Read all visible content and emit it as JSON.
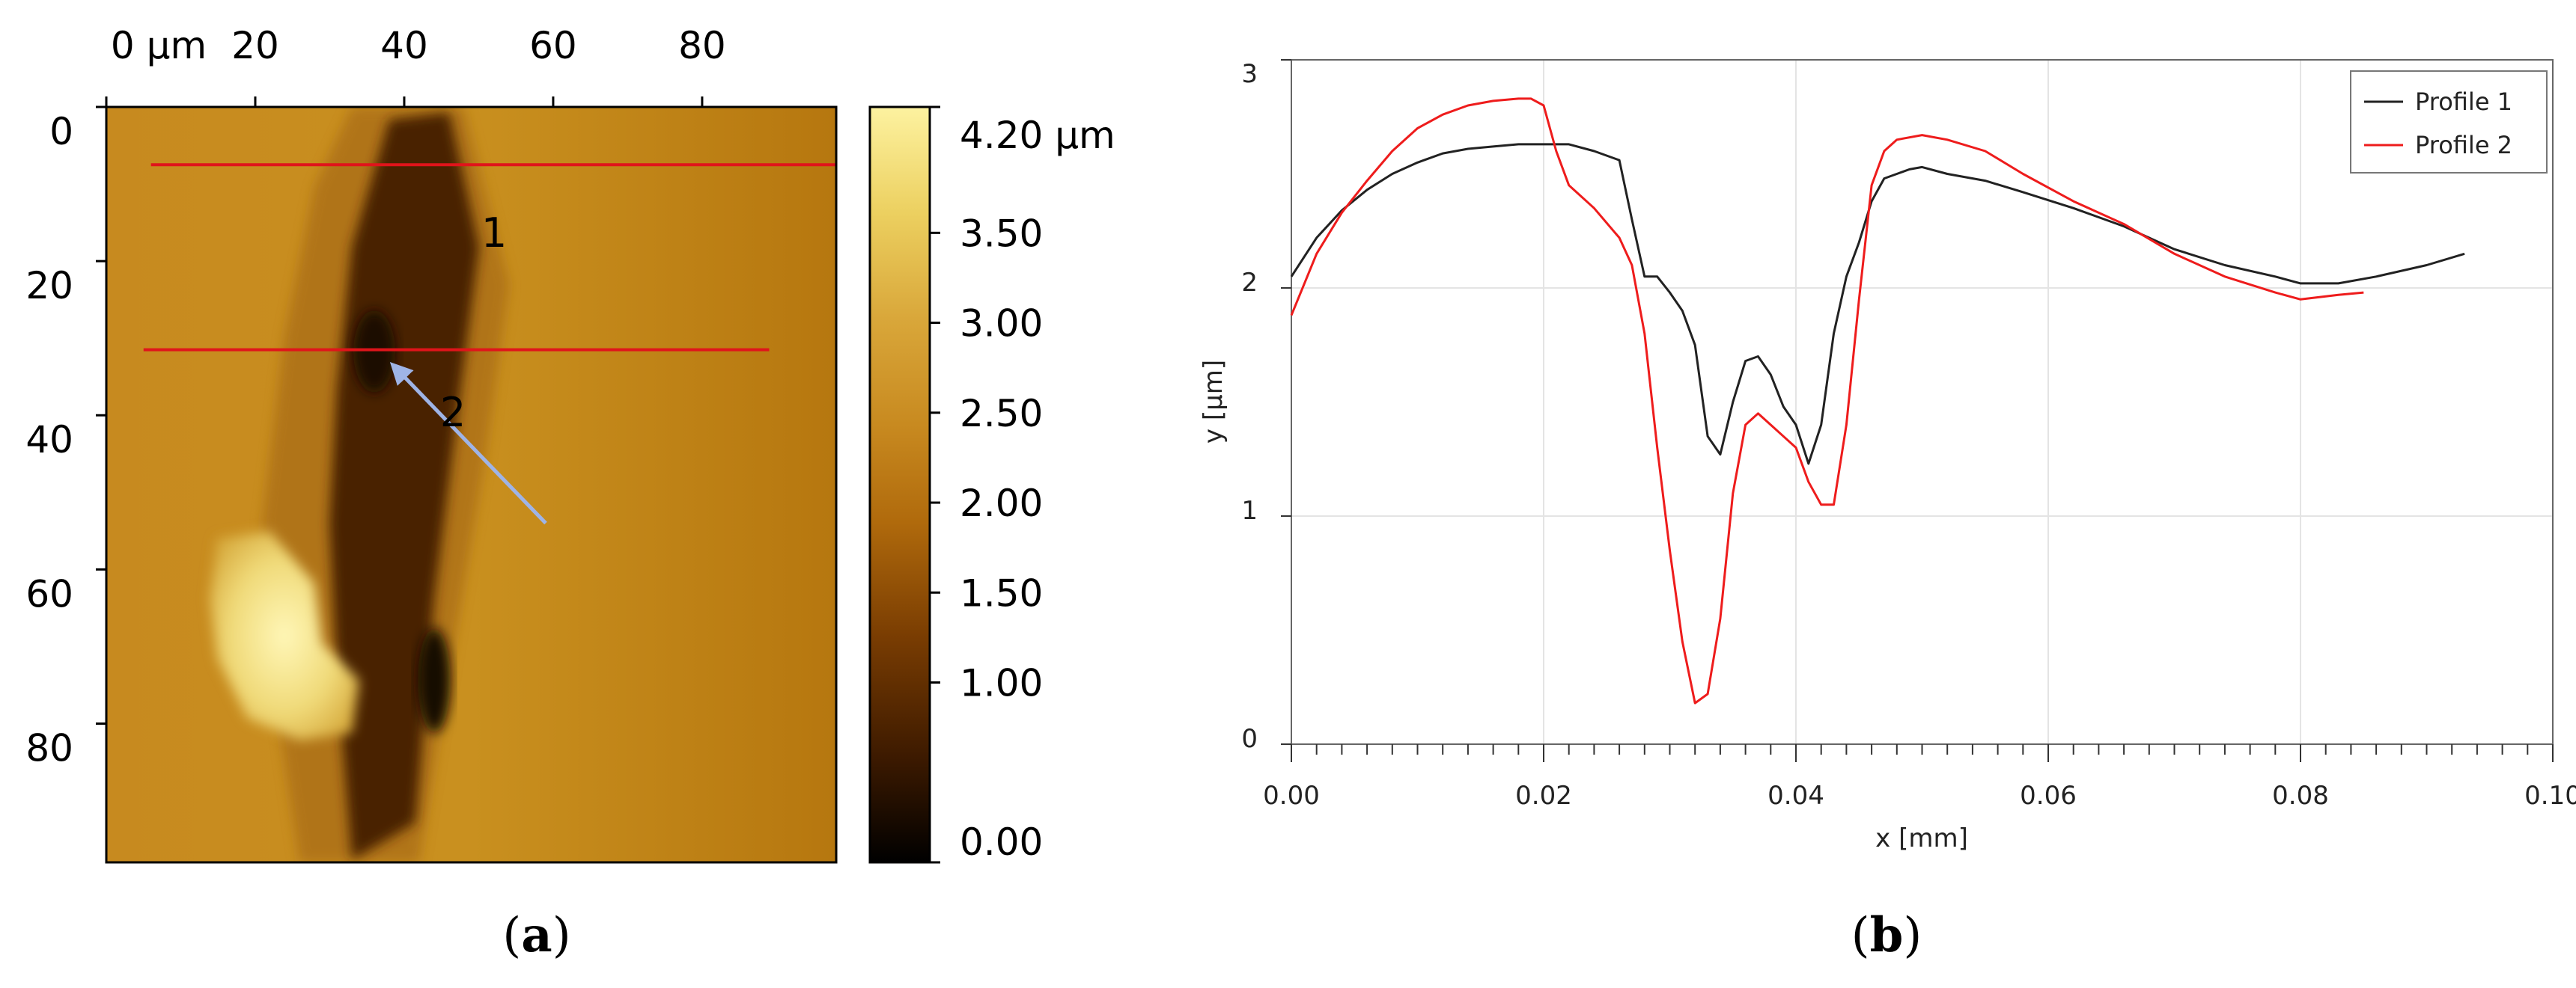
{
  "panels": {
    "a": {
      "caption_open": "(",
      "caption_letter": "a",
      "caption_close": ")"
    },
    "b": {
      "caption_open": "(",
      "caption_letter": "b",
      "caption_close": ")"
    }
  },
  "afm_map": {
    "x_ticks": [
      "0 µm",
      "20",
      "40",
      "60",
      "80"
    ],
    "x_tick_values": [
      0,
      20,
      40,
      60,
      80
    ],
    "y_ticks": [
      "0",
      "20",
      "40",
      "60",
      "80"
    ],
    "y_tick_values": [
      0,
      20,
      40,
      60,
      80
    ],
    "extent_um": [
      0,
      98
    ],
    "colorbar": {
      "labels": [
        "4.20 µm",
        "3.50",
        "3.00",
        "2.50",
        "2.00",
        "1.50",
        "1.00",
        "0.00"
      ],
      "values": [
        4.2,
        3.5,
        3.0,
        2.5,
        2.0,
        1.5,
        1.0,
        0.0
      ],
      "range": [
        0,
        4.2
      ],
      "colors": [
        "#000000",
        "#3d1a00",
        "#7a3d02",
        "#b06a0c",
        "#c88a20",
        "#d9a73a",
        "#ecd060",
        "#fdf2a0"
      ]
    },
    "profile_lines": [
      {
        "label": "1",
        "y_um": 7.5,
        "x_start_um": 6,
        "x_end_um": 98,
        "color": "#e0141b"
      },
      {
        "label": "2",
        "y_um": 31.5,
        "x_start_um": 5,
        "x_end_um": 89,
        "color": "#e0141b"
      }
    ],
    "arrow": {
      "from_um": [
        59,
        54
      ],
      "to_um": [
        38.5,
        33.5
      ],
      "color": "#9fb4e6"
    }
  },
  "chart_data": {
    "type": "line",
    "xlabel": "x [mm]",
    "ylabel": "y [µm]",
    "xlim": [
      0,
      0.1
    ],
    "ylim": [
      0,
      3
    ],
    "x_ticks": [
      "0.00",
      "0.02",
      "0.04",
      "0.06",
      "0.08",
      "0.10"
    ],
    "x_tick_values": [
      0,
      0.02,
      0.04,
      0.06,
      0.08,
      0.1
    ],
    "y_ticks": [
      "0",
      "1",
      "2",
      "3"
    ],
    "y_tick_values": [
      0,
      1,
      2,
      3
    ],
    "grid": true,
    "legend_position": "top-right",
    "series": [
      {
        "name": "Profile 1",
        "color": "#222222",
        "x": [
          0,
          0.002,
          0.004,
          0.006,
          0.008,
          0.01,
          0.012,
          0.014,
          0.016,
          0.018,
          0.02,
          0.022,
          0.024,
          0.026,
          0.027,
          0.028,
          0.029,
          0.03,
          0.031,
          0.032,
          0.033,
          0.034,
          0.035,
          0.036,
          0.037,
          0.038,
          0.039,
          0.04,
          0.041,
          0.042,
          0.043,
          0.044,
          0.045,
          0.046,
          0.047,
          0.048,
          0.049,
          0.05,
          0.052,
          0.055,
          0.058,
          0.062,
          0.066,
          0.07,
          0.074,
          0.078,
          0.08,
          0.083,
          0.086,
          0.09,
          0.093
        ],
        "y": [
          2.05,
          2.22,
          2.34,
          2.43,
          2.5,
          2.55,
          2.59,
          2.61,
          2.62,
          2.63,
          2.63,
          2.63,
          2.6,
          2.56,
          2.3,
          2.05,
          2.05,
          1.98,
          1.9,
          1.75,
          1.35,
          1.27,
          1.5,
          1.68,
          1.7,
          1.62,
          1.48,
          1.4,
          1.23,
          1.4,
          1.8,
          2.05,
          2.2,
          2.38,
          2.48,
          2.5,
          2.52,
          2.53,
          2.5,
          2.47,
          2.42,
          2.35,
          2.27,
          2.17,
          2.1,
          2.05,
          2.02,
          2.02,
          2.05,
          2.1,
          2.15
        ]
      },
      {
        "name": "Profile 2",
        "color": "#ee1c1c",
        "x": [
          0,
          0.002,
          0.004,
          0.006,
          0.008,
          0.01,
          0.012,
          0.014,
          0.016,
          0.018,
          0.019,
          0.02,
          0.021,
          0.022,
          0.024,
          0.026,
          0.027,
          0.028,
          0.029,
          0.03,
          0.031,
          0.032,
          0.033,
          0.034,
          0.035,
          0.036,
          0.037,
          0.038,
          0.039,
          0.04,
          0.041,
          0.042,
          0.043,
          0.044,
          0.045,
          0.046,
          0.047,
          0.048,
          0.05,
          0.052,
          0.055,
          0.058,
          0.062,
          0.066,
          0.07,
          0.074,
          0.078,
          0.08,
          0.083,
          0.085
        ],
        "y": [
          1.88,
          2.15,
          2.33,
          2.47,
          2.6,
          2.7,
          2.76,
          2.8,
          2.82,
          2.83,
          2.83,
          2.8,
          2.6,
          2.45,
          2.35,
          2.22,
          2.1,
          1.8,
          1.3,
          0.85,
          0.45,
          0.18,
          0.22,
          0.55,
          1.1,
          1.4,
          1.45,
          1.4,
          1.35,
          1.3,
          1.15,
          1.05,
          1.05,
          1.4,
          1.95,
          2.45,
          2.6,
          2.65,
          2.67,
          2.65,
          2.6,
          2.5,
          2.38,
          2.28,
          2.15,
          2.05,
          1.98,
          1.95,
          1.97,
          1.98
        ]
      }
    ]
  }
}
